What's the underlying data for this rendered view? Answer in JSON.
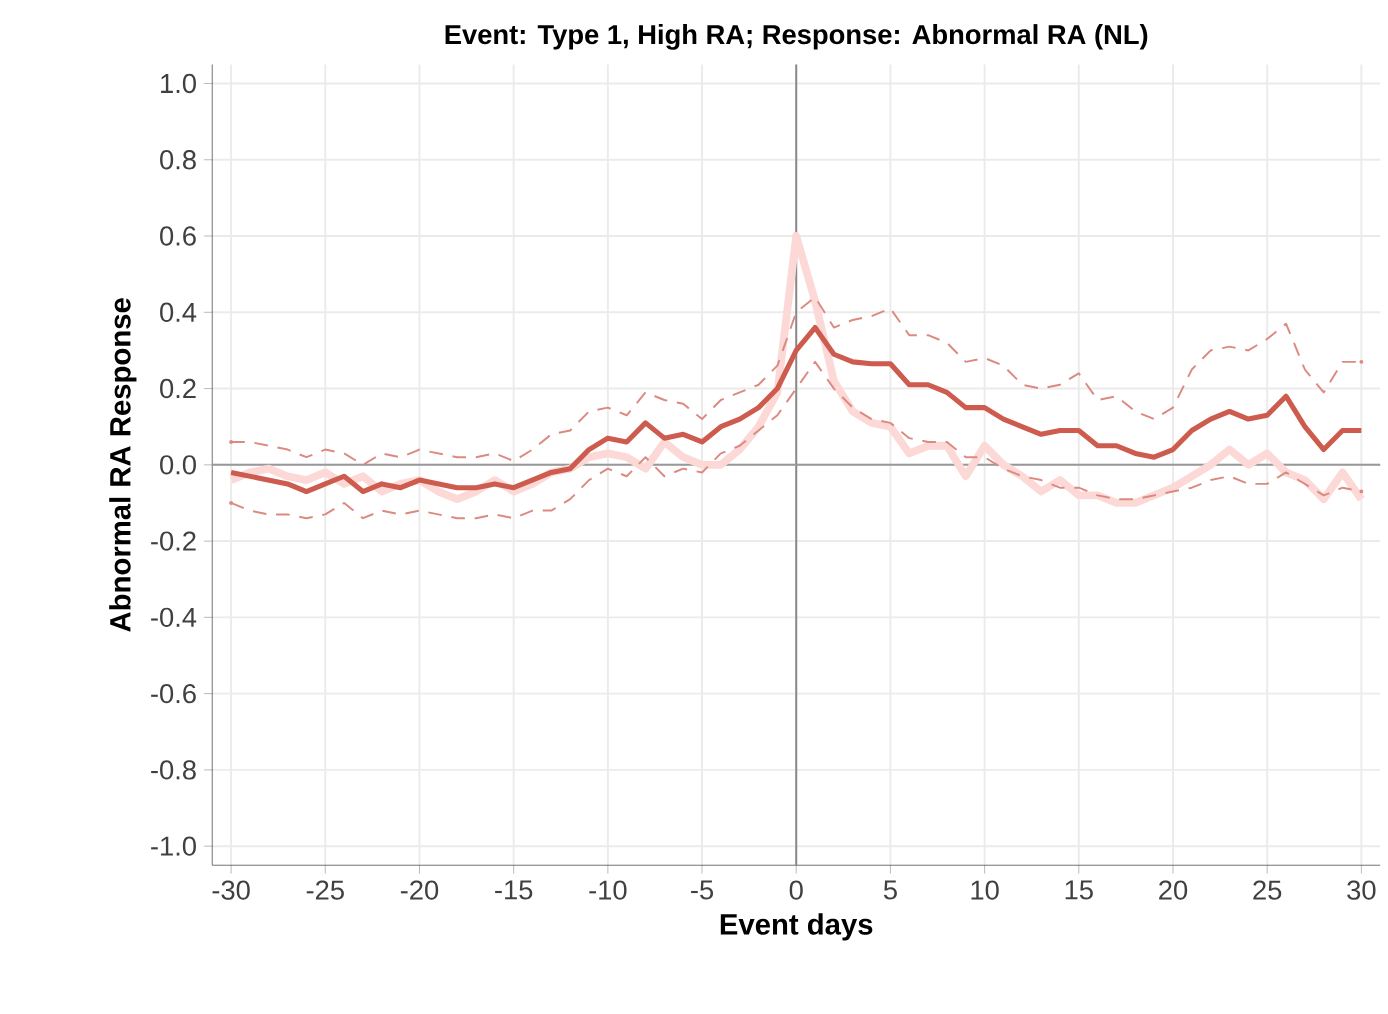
{
  "chart_data": {
    "type": "line",
    "title": "Event: Type 1, High RA; Response: Abnormal RA (NL)",
    "xlabel": "Event days",
    "ylabel": "Abnormal RA Response",
    "x": [
      -30,
      -29,
      -28,
      -27,
      -26,
      -25,
      -24,
      -23,
      -22,
      -21,
      -20,
      -19,
      -18,
      -17,
      -16,
      -15,
      -14,
      -13,
      -12,
      -11,
      -10,
      -9,
      -8,
      -7,
      -6,
      -5,
      -4,
      -3,
      -2,
      -1,
      0,
      1,
      2,
      3,
      4,
      5,
      6,
      7,
      8,
      9,
      10,
      11,
      12,
      13,
      14,
      15,
      16,
      17,
      18,
      19,
      20,
      21,
      22,
      23,
      24,
      25,
      26,
      27,
      28,
      29,
      30
    ],
    "series": [
      {
        "color": "#fcd9d6",
        "line_style": "solid",
        "values": [
          -0.04,
          -0.02,
          -0.01,
          -0.03,
          -0.04,
          -0.02,
          -0.05,
          -0.03,
          -0.07,
          -0.05,
          -0.04,
          -0.07,
          -0.09,
          -0.07,
          -0.04,
          -0.07,
          -0.05,
          -0.02,
          -0.01,
          0.02,
          0.03,
          0.02,
          -0.01,
          0.06,
          0.02,
          0.0,
          0.0,
          0.04,
          0.1,
          0.19,
          0.6,
          0.43,
          0.22,
          0.14,
          0.11,
          0.1,
          0.03,
          0.05,
          0.05,
          -0.03,
          0.05,
          0.0,
          -0.03,
          -0.07,
          -0.04,
          -0.08,
          -0.08,
          -0.1,
          -0.1,
          -0.08,
          -0.06,
          -0.03,
          0.0,
          0.04,
          0.0,
          0.03,
          -0.02,
          -0.04,
          -0.09,
          -0.02,
          -0.09
        ]
      },
      {
        "color": "#dc8a80",
        "line_style": "dashed",
        "values": [
          0.06,
          0.06,
          0.05,
          0.04,
          0.02,
          0.04,
          0.03,
          0.0,
          0.03,
          0.02,
          0.04,
          0.03,
          0.02,
          0.02,
          0.03,
          0.01,
          0.04,
          0.08,
          0.09,
          0.14,
          0.15,
          0.13,
          0.19,
          0.17,
          0.16,
          0.12,
          0.17,
          0.19,
          0.21,
          0.26,
          0.4,
          0.44,
          0.36,
          0.38,
          0.39,
          0.41,
          0.34,
          0.34,
          0.32,
          0.27,
          0.28,
          0.26,
          0.21,
          0.2,
          0.21,
          0.24,
          0.17,
          0.18,
          0.14,
          0.12,
          0.15,
          0.25,
          0.3,
          0.31,
          0.3,
          0.33,
          0.37,
          0.25,
          0.19,
          0.27,
          0.27
        ]
      },
      {
        "color": "#dc8a80",
        "line_style": "dashed",
        "values": [
          -0.1,
          -0.12,
          -0.13,
          -0.13,
          -0.14,
          -0.13,
          -0.1,
          -0.14,
          -0.12,
          -0.13,
          -0.12,
          -0.13,
          -0.14,
          -0.14,
          -0.13,
          -0.14,
          -0.12,
          -0.12,
          -0.09,
          -0.04,
          -0.01,
          -0.03,
          0.02,
          -0.03,
          -0.01,
          -0.02,
          0.03,
          0.05,
          0.09,
          0.13,
          0.2,
          0.27,
          0.2,
          0.15,
          0.12,
          0.11,
          0.07,
          0.06,
          0.06,
          0.02,
          0.02,
          -0.01,
          -0.03,
          -0.04,
          -0.06,
          -0.06,
          -0.08,
          -0.09,
          -0.09,
          -0.08,
          -0.07,
          -0.06,
          -0.04,
          -0.03,
          -0.05,
          -0.05,
          -0.02,
          -0.05,
          -0.08,
          -0.06,
          -0.07
        ]
      },
      {
        "color": "#cd5c4e",
        "line_style": "solid",
        "values": [
          -0.02,
          -0.03,
          -0.04,
          -0.05,
          -0.07,
          -0.05,
          -0.03,
          -0.07,
          -0.05,
          -0.06,
          -0.04,
          -0.05,
          -0.06,
          -0.06,
          -0.05,
          -0.06,
          -0.04,
          -0.02,
          -0.01,
          0.04,
          0.07,
          0.06,
          0.11,
          0.07,
          0.08,
          0.06,
          0.1,
          0.12,
          0.15,
          0.2,
          0.3,
          0.36,
          0.29,
          0.27,
          0.265,
          0.265,
          0.21,
          0.21,
          0.19,
          0.15,
          0.15,
          0.12,
          0.1,
          0.08,
          0.09,
          0.09,
          0.05,
          0.05,
          0.03,
          0.02,
          0.04,
          0.09,
          0.12,
          0.14,
          0.12,
          0.13,
          0.18,
          0.1,
          0.04,
          0.09,
          0.09
        ]
      }
    ],
    "xlim": [
      -31,
      31
    ],
    "ylim": [
      -1.05,
      1.05
    ],
    "xticks": [
      -30,
      -25,
      -20,
      -15,
      -10,
      -5,
      0,
      5,
      10,
      15,
      20,
      25,
      30
    ],
    "yticks": [
      {
        "value": -1.0,
        "label": "-1.0"
      },
      {
        "value": -0.8,
        "label": "-0.8"
      },
      {
        "value": -0.6,
        "label": "-0.6"
      },
      {
        "value": -0.4,
        "label": "-0.4"
      },
      {
        "value": -0.2,
        "label": "-0.2"
      },
      {
        "value": 0,
        "label": "0.0"
      },
      {
        "value": 0.2,
        "label": "0.2"
      },
      {
        "value": 0.4,
        "label": "0.4"
      },
      {
        "value": 0.6,
        "label": "0.6"
      },
      {
        "value": 0.8,
        "label": "0.8"
      },
      {
        "value": 1.0,
        "label": "1.0"
      }
    ],
    "ref_lines": [
      {
        "axis": "x",
        "value": 0,
        "color": "#888888"
      },
      {
        "axis": "y",
        "value": 0,
        "color": "#999999"
      }
    ],
    "grid": true,
    "marker": "none"
  }
}
